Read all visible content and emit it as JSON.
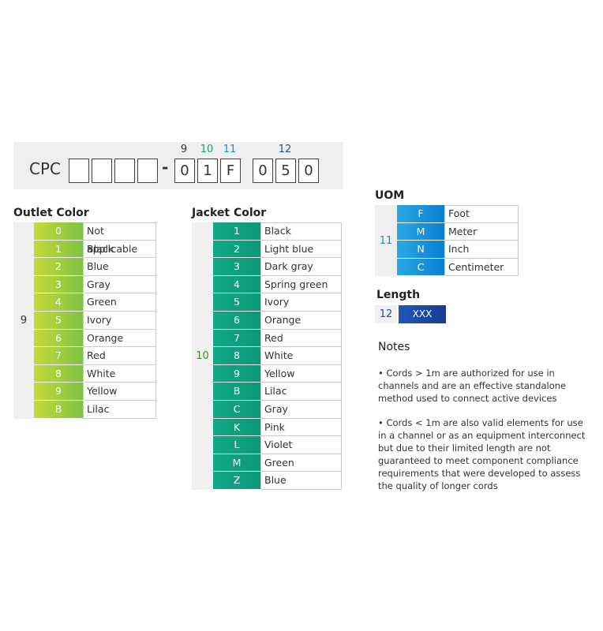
{
  "header": {
    "prefix": "CPC",
    "dash": "-",
    "digits": [
      "0",
      "1",
      "F",
      "0",
      "5",
      "0"
    ],
    "positions": [
      "9",
      "10",
      "11",
      "12"
    ]
  },
  "outlet": {
    "title": "Outlet Color",
    "group": "9",
    "rows": [
      [
        "0",
        "Not applicable"
      ],
      [
        "1",
        "Black"
      ],
      [
        "2",
        "Blue"
      ],
      [
        "3",
        "Gray"
      ],
      [
        "4",
        "Green"
      ],
      [
        "5",
        "Ivory"
      ],
      [
        "6",
        "Orange"
      ],
      [
        "7",
        "Red"
      ],
      [
        "8",
        "White"
      ],
      [
        "9",
        "Yellow"
      ],
      [
        "B",
        "Lilac"
      ]
    ]
  },
  "jacket": {
    "title": "Jacket Color",
    "group": "10",
    "rows": [
      [
        "1",
        "Black"
      ],
      [
        "2",
        "Light blue"
      ],
      [
        "3",
        "Dark gray"
      ],
      [
        "4",
        "Spring green"
      ],
      [
        "5",
        "Ivory"
      ],
      [
        "6",
        "Orange"
      ],
      [
        "7",
        "Red"
      ],
      [
        "8",
        "White"
      ],
      [
        "9",
        "Yellow"
      ],
      [
        "B",
        "Lilac"
      ],
      [
        "C",
        "Gray"
      ],
      [
        "K",
        "Pink"
      ],
      [
        "L",
        "Violet"
      ],
      [
        "M",
        "Green"
      ],
      [
        "Z",
        "Blue"
      ]
    ]
  },
  "uom": {
    "title": "UOM",
    "group": "11",
    "rows": [
      [
        "F",
        "Foot"
      ],
      [
        "M",
        "Meter"
      ],
      [
        "N",
        "Inch"
      ],
      [
        "C",
        "Centimeter"
      ]
    ]
  },
  "length": {
    "title": "Length",
    "group": "12",
    "value": "XXX"
  },
  "notes": {
    "title": "Notes",
    "items": [
      "• Cords > 1m are authorized for use in channels and are an effective standalone method used to connect active devices",
      "• Cords < 1m are also valid elements for use in a channel or as an equipment interconnect but due to their limited length are not guaranteed to meet component compliance requirements that were developed to assess the quality of longer cords"
    ]
  }
}
